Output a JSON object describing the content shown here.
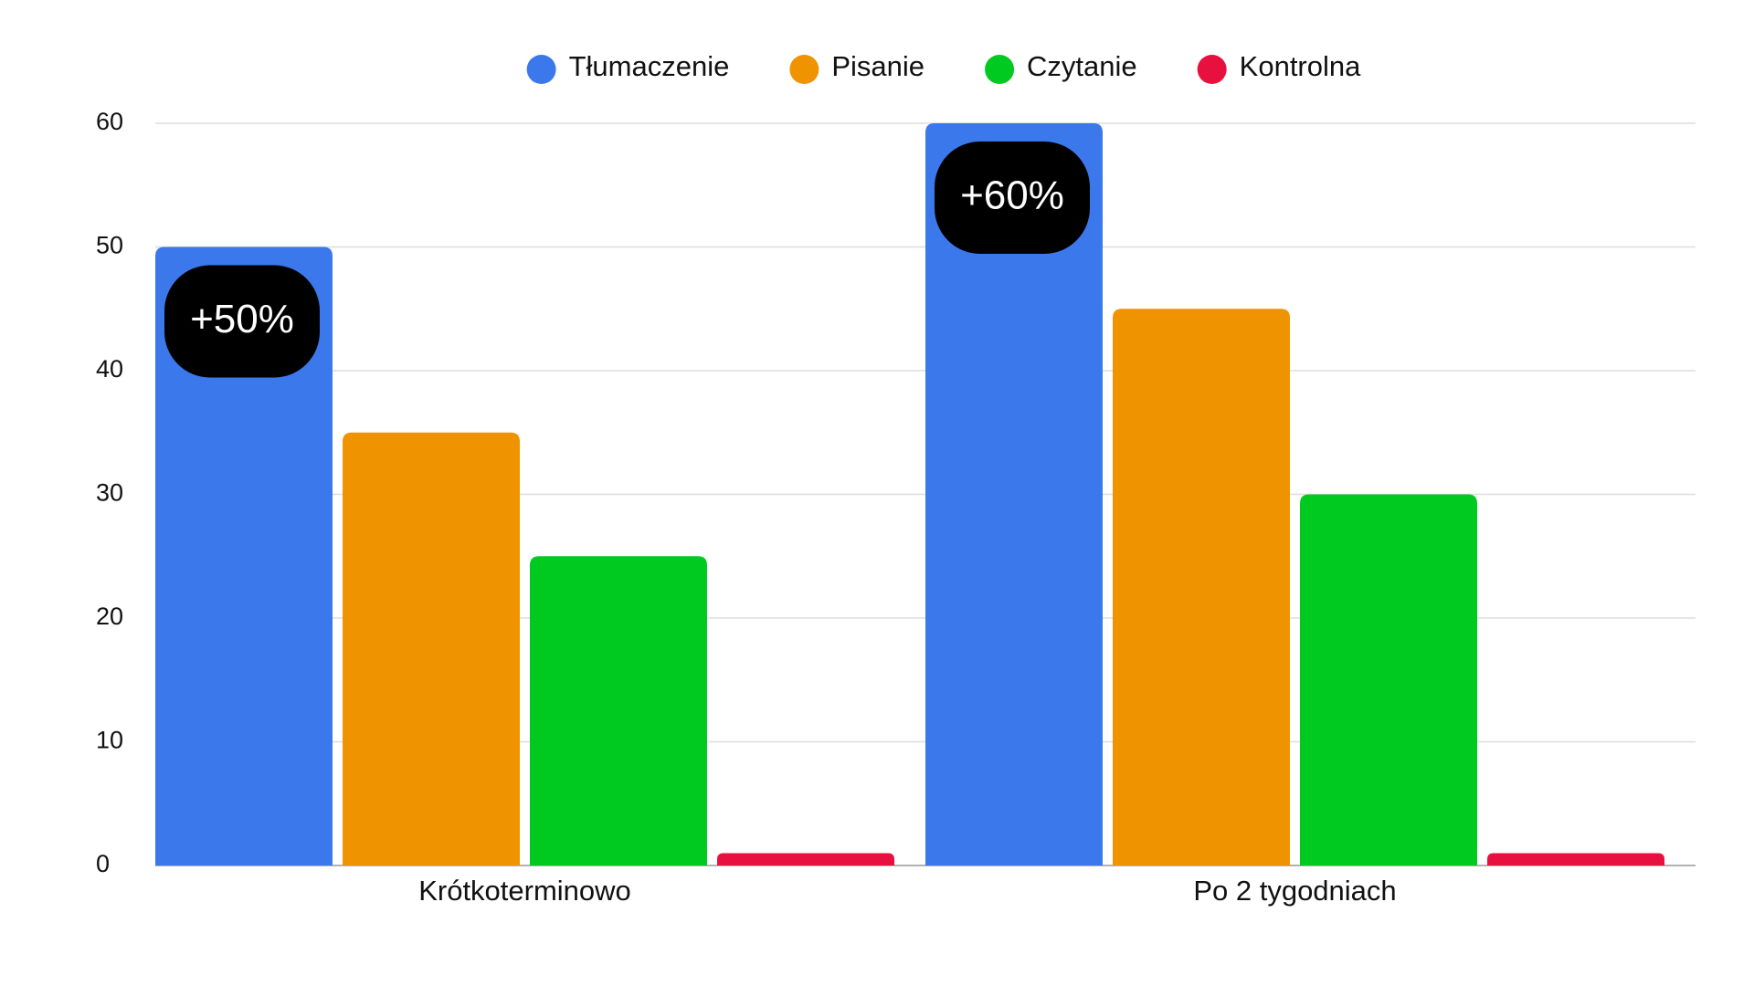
{
  "chart_data": {
    "type": "bar",
    "categories": [
      "Krótkoterminowo",
      "Po 2 tygodniach"
    ],
    "series": [
      {
        "name": "Tłumaczenie",
        "color": "#3b78ec",
        "values": [
          50,
          60
        ]
      },
      {
        "name": "Pisanie",
        "color": "#f09300",
        "values": [
          35,
          45
        ]
      },
      {
        "name": "Czytanie",
        "color": "#00c920",
        "values": [
          25,
          30
        ]
      },
      {
        "name": "Kontrolna",
        "color": "#e8103f",
        "values": [
          1,
          1
        ]
      }
    ],
    "annotations": [
      "+50%",
      "+60%"
    ],
    "ylim": [
      0,
      60
    ],
    "yticks": [
      0,
      10,
      20,
      30,
      40,
      50,
      60
    ],
    "grid": true,
    "legend": "top"
  }
}
